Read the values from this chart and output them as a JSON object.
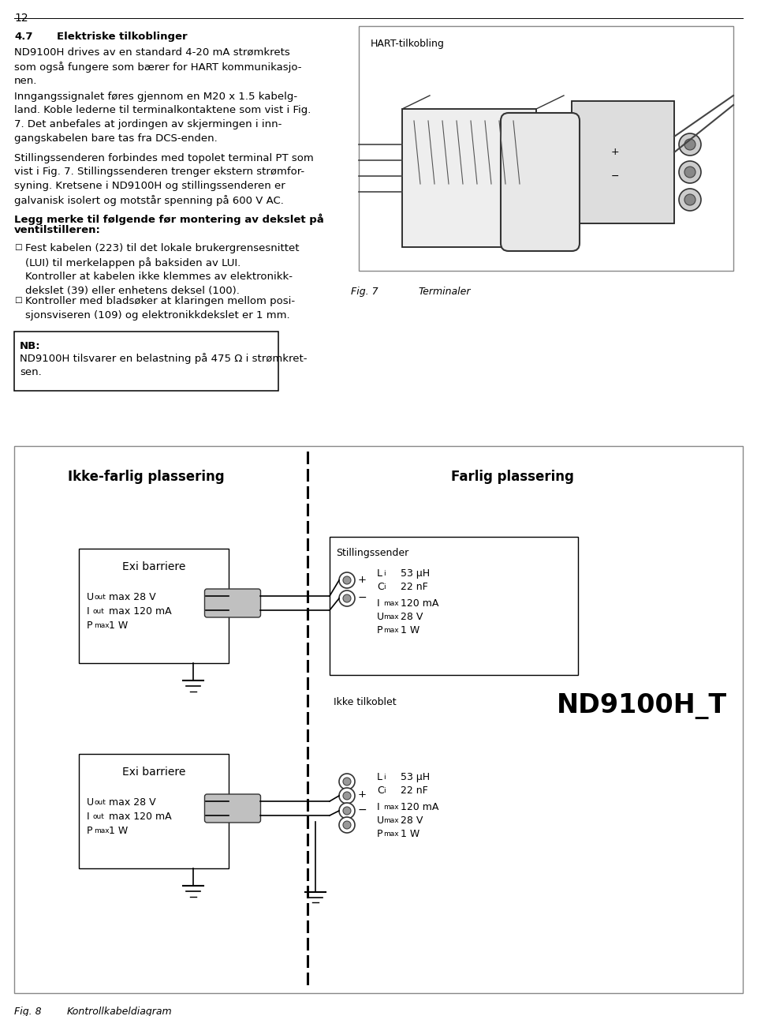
{
  "page_number": "12",
  "bg_color": "#ffffff",
  "text_color": "#000000",
  "section_num": "4.7",
  "section_title": "Elektriske tilkoblinger",
  "para1": "ND9100H drives av en standard 4-20 mA strømkrets\nsom også fungere som bærer for HART kommunikasjo-\nnen.",
  "para2": "Inngangssignalet føres gjennom en M20 x 1.5 kabelg-\nland. Koble lederne til terminalkontaktene som vist i Fig.\n7. Det anbefales at jordingen av skjermingen i inn-\ngangskabelen bare tas fra DCS-enden.",
  "para3": "Stillingssenderen forbindes med topolet terminal PT som\nvist i Fig. 7. Stillingssenderen trenger ekstern strømfor-\nsyning. Kretsene i ND9100H og stillingssenderen er\ngalvanisk isolert og motstår spenning på 600 V AC.",
  "bold_para_line1": "Legg merke til følgende før montering av dekslet på",
  "bold_para_line2": "ventilstilleren:",
  "bullet1_lines": "Fest kabelen (223) til det lokale brukergrensesnittet\n(LUI) til merkelappen på baksiden av LUI.\nKontroller at kabelen ikke klemmes av elektronikk-\ndekslet (39) eller enhetens deksel (100).",
  "bullet2_lines": "Kontroller med bladsøker at klaringen mellom posi-\nsjonsviseren (109) og elektronikkdekslet er 1 mm.",
  "nb_title": "NB:",
  "nb_text": "ND9100H tilsvarer en belastning på 475 Ω i strømkret-\nsen.",
  "hart_label": "HART-tilkobling",
  "fig7_label": "Fig. 7",
  "fig7_caption": "Terminaler",
  "diagram_title_left": "Ikke-farlig plassering",
  "diagram_title_right": "Farlig plassering",
  "exi_label": "Exi barriere",
  "exi_uout": "U",
  "exi_uout_sub": "out",
  "exi_uout_val": " max 28 V",
  "exi_iout": "I",
  "exi_iout_sub": "out",
  "exi_iout_val": " max 120 mA",
  "exi_pmax": "P",
  "exi_pmax_sub": "max",
  "exi_pmax_val": " 1 W",
  "still_label": "Stillingssender",
  "param_li": "L",
  "param_li_sub": "i",
  "param_li_val": "  53 μH",
  "param_ci": "C",
  "param_ci_sub": "i",
  "param_ci_val": "  22 nF",
  "param_imax": "I",
  "param_imax_sub": "max",
  "param_imax_val": "  120 mA",
  "param_umax": "U",
  "param_umax_sub": "max",
  "param_umax_val": "  28 V",
  "param_pmax": "P",
  "param_pmax_sub": "max",
  "param_pmax_val": "  1 W",
  "ikke_tilkoblet": "Ikke tilkoblet",
  "nd9100h_t": "ND9100H_T",
  "fig8_label": "Fig. 8",
  "fig8_caption": "Kontrollkabeldiagram"
}
